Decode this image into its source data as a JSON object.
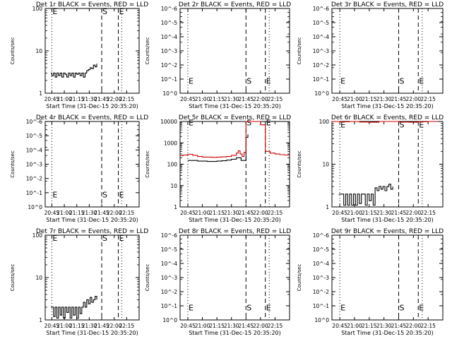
{
  "page": {
    "background": "#ffffff",
    "ink": "#000000",
    "lld_color": "#cc0000"
  },
  "common": {
    "ylabel": "Counts/sec",
    "xlabel": "Start Time (31-Dec-15 20:35:20)",
    "x_ticks": [
      "20:45",
      "21:00",
      "21:15",
      "21:30",
      "21:45",
      "22:00",
      "22:15"
    ],
    "xlim": [
      -8,
      105
    ],
    "markers": [
      {
        "label": "E",
        "x": 0,
        "style": "dotted"
      },
      {
        "label": "S",
        "x": 60,
        "style": "dashed"
      },
      {
        "label": "E",
        "x": 80,
        "style": "dashed"
      },
      {
        "label": "",
        "x": 84,
        "style": "dotted"
      }
    ]
  },
  "chart_data": [
    {
      "title": "Det 1r BLACK = Events, RED = LLD",
      "type": "line",
      "yscale": "log",
      "ylim": [
        1,
        100
      ],
      "y_ticks": [
        "1",
        "10",
        "100"
      ],
      "marker_label_y": 85,
      "series": [
        {
          "color": "#000000",
          "x": [
            -1,
            0,
            2,
            4,
            6,
            8,
            10,
            12,
            14,
            16,
            18,
            20,
            22,
            24,
            26,
            28,
            30,
            32,
            34,
            36,
            38,
            40,
            42,
            44,
            46,
            48,
            50,
            52,
            54
          ],
          "y": [
            3,
            2.6,
            3,
            2.4,
            3,
            2.6,
            3,
            2.4,
            3,
            2.8,
            2.4,
            3,
            2.6,
            3,
            2.4,
            3,
            2.8,
            3,
            2.6,
            3,
            2.4,
            3,
            3.4,
            3.6,
            4,
            3.8,
            4.6,
            4.2,
            5
          ]
        }
      ]
    },
    {
      "title": "Det 2r BLACK = Events, RED = LLD",
      "type": "line",
      "yscale": "log",
      "ylim": [
        1e-06,
        1e-05
      ],
      "y_ticks": [
        "10^0",
        "10^-1",
        "10^-2",
        "10^-3",
        "10^-4",
        "10^-5",
        "10^-6"
      ],
      "marker_label_y": 1.4e-06,
      "series": []
    },
    {
      "title": "Det 3r BLACK = Events, RED = LLD",
      "type": "line",
      "yscale": "log",
      "ylim": [
        1e-06,
        1e-05
      ],
      "y_ticks": [
        "10^0",
        "10^-1",
        "10^-2",
        "10^-3",
        "10^-4",
        "10^-5",
        "10^-6"
      ],
      "marker_label_y": 1.4e-06,
      "series": []
    },
    {
      "title": "Det 4r BLACK = Events, RED = LLD",
      "type": "line",
      "yscale": "log",
      "ylim": [
        1e-06,
        1e-05
      ],
      "y_ticks": [
        "10^0",
        "10^-1",
        "10^-2",
        "10^-3",
        "10^-4",
        "10^-5",
        "10^-6"
      ],
      "marker_label_y": 1.4e-06,
      "series": []
    },
    {
      "title": "Det 5r BLACK = Events, RED = LLD",
      "type": "line",
      "yscale": "log",
      "ylim": [
        1,
        10000
      ],
      "y_ticks": [
        "1",
        "10",
        "100",
        "1000",
        "10000"
      ],
      "marker_label_y": 9000,
      "series": [
        {
          "color": "#000000",
          "x": [
            0,
            5,
            10,
            15,
            20,
            25,
            30,
            35,
            40,
            45,
            50,
            55,
            60,
            62
          ],
          "y": [
            150,
            150,
            140,
            140,
            135,
            135,
            140,
            145,
            155,
            170,
            200,
            150,
            1800,
            2500
          ]
        },
        {
          "color": "#cc0000",
          "x": [
            -8,
            -5,
            0,
            5,
            10,
            15,
            20,
            25,
            30,
            35,
            40,
            45,
            50,
            52,
            54,
            56,
            58,
            60,
            62,
            64,
            66,
            68,
            70,
            75,
            80,
            85,
            90,
            95,
            100,
            105
          ],
          "y": [
            250,
            270,
            290,
            260,
            230,
            215,
            215,
            210,
            215,
            220,
            230,
            260,
            330,
            420,
            300,
            230,
            360,
            10000,
            10000,
            10000,
            10000,
            10000,
            10000,
            7000,
            400,
            330,
            300,
            280,
            270,
            260
          ]
        }
      ]
    },
    {
      "title": "Det 6r BLACK = Events, RED = LLD",
      "type": "line",
      "yscale": "log",
      "ylim": [
        1,
        100
      ],
      "y_ticks": [
        "1",
        "10",
        "100"
      ],
      "marker_label_y": 85,
      "series": [
        {
          "color": "#000000",
          "x": [
            -1,
            0,
            2,
            4,
            6,
            8,
            10,
            12,
            14,
            16,
            18,
            20,
            22,
            24,
            26,
            28,
            30,
            32,
            34,
            36,
            38,
            40,
            42,
            44,
            46,
            48,
            50,
            52,
            54
          ],
          "y": [
            2,
            2,
            2,
            1.1,
            2,
            1.1,
            2,
            1.1,
            2,
            1.1,
            2,
            1.2,
            2,
            2,
            1.1,
            2,
            1.4,
            2,
            1.1,
            2.8,
            2.4,
            3,
            2.6,
            3,
            2.4,
            3,
            3.4,
            2.6,
            3
          ]
        },
        {
          "color": "#cc0000",
          "x": [
            -8,
            0,
            10,
            20,
            30,
            40,
            50,
            60,
            70,
            80,
            90,
            100
          ],
          "y": [
            100,
            98,
            100,
            97,
            96,
            100,
            100,
            97,
            96,
            99,
            100,
            100
          ]
        }
      ]
    },
    {
      "title": "Det 7r BLACK = Events, RED = LLD",
      "type": "line",
      "yscale": "log",
      "ylim": [
        1,
        100
      ],
      "y_ticks": [
        "1",
        "10",
        "100"
      ],
      "marker_label_y": 85,
      "series": [
        {
          "color": "#000000",
          "x": [
            -1,
            0,
            2,
            4,
            6,
            8,
            10,
            12,
            14,
            16,
            18,
            20,
            22,
            24,
            26,
            28,
            30,
            32,
            34,
            36,
            38,
            40,
            42,
            44,
            46,
            48,
            50,
            52,
            54
          ],
          "y": [
            2,
            2,
            1.2,
            2,
            1.1,
            2,
            1.3,
            2,
            1.1,
            2,
            1.5,
            2,
            1.1,
            2,
            1.3,
            2,
            1.1,
            2,
            1.4,
            2,
            2.6,
            2,
            3,
            2.4,
            3.4,
            2.6,
            3,
            3.6,
            3
          ]
        }
      ]
    },
    {
      "title": "Det 8r BLACK = Events, RED = LLD",
      "type": "line",
      "yscale": "log",
      "ylim": [
        1e-06,
        1e-05
      ],
      "y_ticks": [
        "10^0",
        "10^-1",
        "10^-2",
        "10^-3",
        "10^-4",
        "10^-5",
        "10^-6"
      ],
      "marker_label_y": 1.4e-06,
      "series": []
    },
    {
      "title": "Det 9r BLACK = Events, RED = LLD",
      "type": "line",
      "yscale": "log",
      "ylim": [
        1e-06,
        1e-05
      ],
      "y_ticks": [
        "10^0",
        "10^-1",
        "10^-2",
        "10^-3",
        "10^-4",
        "10^-5",
        "10^-6"
      ],
      "marker_label_y": 1.4e-06,
      "series": []
    }
  ]
}
